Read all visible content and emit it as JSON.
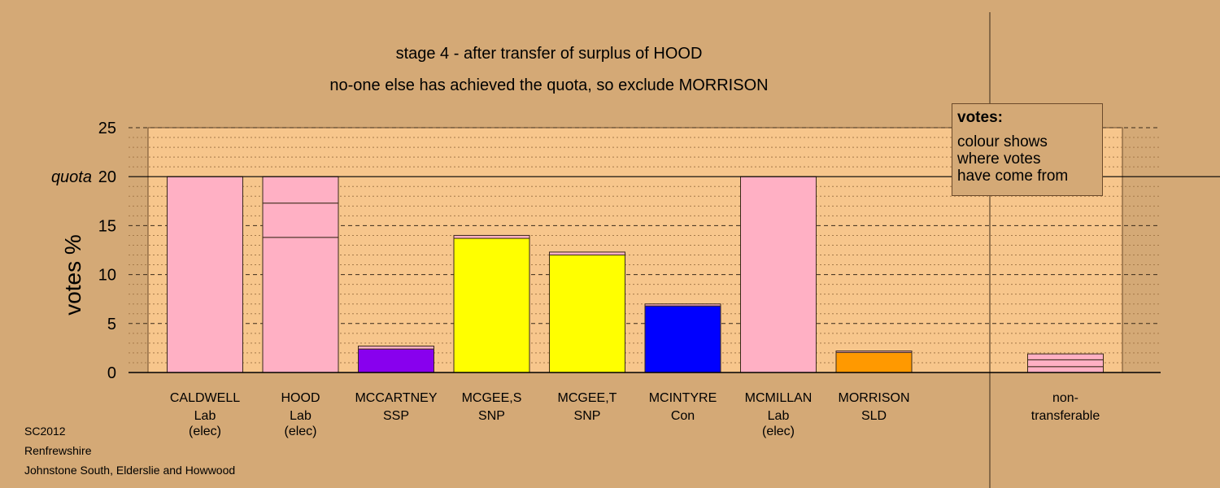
{
  "chart_data": {
    "type": "bar",
    "title": "stage 4 - after transfer of surplus of HOOD",
    "subtitle": "no-one else has achieved the quota, so exclude MORRISON",
    "ylabel": "votes %",
    "ylim": [
      0,
      25
    ],
    "yticks": [
      0,
      5,
      10,
      15,
      20,
      25
    ],
    "quota": 20,
    "quota_label": "quota",
    "candidates": [
      {
        "name": "CALDWELL",
        "party": "Lab",
        "status": "(elec)",
        "segments": [
          {
            "value": 20,
            "color": "#ffb0c4"
          }
        ]
      },
      {
        "name": "HOOD",
        "party": "Lab",
        "status": "(elec)",
        "segments": [
          {
            "value": 13.8,
            "color": "#ffb0c4"
          },
          {
            "value": 3.5,
            "color": "#ffb0c4"
          },
          {
            "value": 2.7,
            "color": "#ffb0c4"
          }
        ]
      },
      {
        "name": "MCCARTNEY",
        "party": "SSP",
        "status": "",
        "segments": [
          {
            "value": 2.4,
            "color": "#8800ee"
          },
          {
            "value": 0.3,
            "color": "#ffb0c4"
          }
        ]
      },
      {
        "name": "MCGEE,S",
        "party": "SNP",
        "status": "",
        "segments": [
          {
            "value": 13.7,
            "color": "#ffff00"
          },
          {
            "value": 0.3,
            "color": "#ffb0c4"
          }
        ]
      },
      {
        "name": "MCGEE,T",
        "party": "SNP",
        "status": "",
        "segments": [
          {
            "value": 12.0,
            "color": "#ffff00"
          },
          {
            "value": 0.3,
            "color": "#ffb0c4"
          }
        ]
      },
      {
        "name": "MCINTYRE",
        "party": "Con",
        "status": "",
        "segments": [
          {
            "value": 6.8,
            "color": "#0000ff"
          },
          {
            "value": 0.2,
            "color": "#ffb0c4"
          }
        ]
      },
      {
        "name": "MCMILLAN",
        "party": "Lab",
        "status": "(elec)",
        "segments": [
          {
            "value": 20,
            "color": "#ffb0c4"
          }
        ]
      },
      {
        "name": "MORRISON",
        "party": "SLD",
        "status": "",
        "segments": [
          {
            "value": 2.05,
            "color": "#ff9900"
          },
          {
            "value": 0.15,
            "color": "#ffb0c4"
          }
        ]
      }
    ],
    "non_transferable": {
      "label1": "non-",
      "label2": "transferable",
      "segments": [
        {
          "value": 0.6,
          "color": "#ffb0c4"
        },
        {
          "value": 0.7,
          "color": "#ffb0c4"
        },
        {
          "value": 0.6,
          "color": "#ffb0c4"
        }
      ]
    }
  },
  "legend": {
    "title": "votes:",
    "lines": [
      "colour shows",
      "where votes",
      "have come from"
    ]
  },
  "footer": {
    "line1": "SC2012",
    "line2": "Renfrewshire",
    "line3": "Johnstone South, Elderslie and Howwood"
  },
  "colors": {
    "background": "#d4a976",
    "plot_area": "#f7c68c",
    "lab": "#ffb0c4",
    "ssp": "#8800ee",
    "snp": "#ffff00",
    "con": "#0000ff",
    "sld": "#ff9900"
  }
}
